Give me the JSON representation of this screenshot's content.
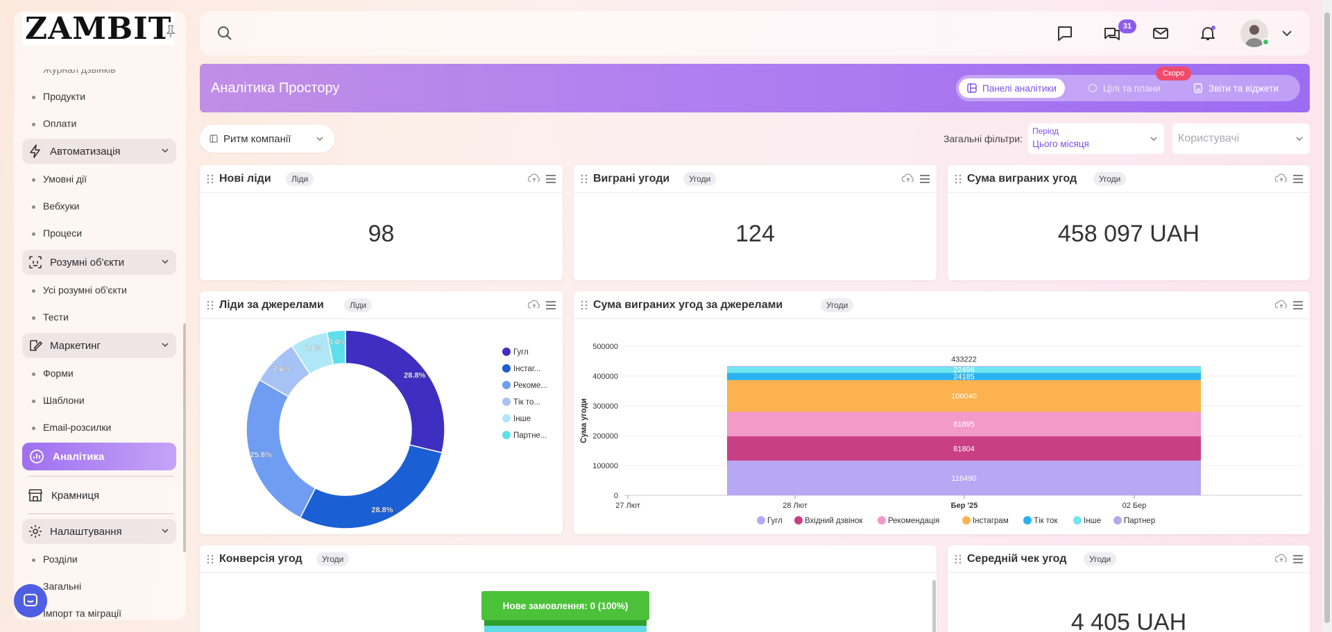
{
  "sidebar": {
    "logo": "ZAMBIT",
    "partial_item": "Журнал дзвінків",
    "items": [
      {
        "label": "Продукти"
      },
      {
        "label": "Оплати"
      }
    ],
    "groups": {
      "automation": {
        "label": "Автоматизація",
        "items": [
          "Умовні дії",
          "Вебхуки",
          "Процеси"
        ]
      },
      "smart_objects": {
        "label": "Розумні об'єкти",
        "items": [
          "Усі розумні об'єкти",
          "Тести"
        ]
      },
      "marketing": {
        "label": "Маркетинг",
        "items": [
          "Форми",
          "Шаблони",
          "Email-розсилки"
        ]
      },
      "settings": {
        "label": "Налаштування",
        "items": [
          "Розділи",
          "Загальні",
          "Імпорт та міграції"
        ]
      }
    },
    "active": "Аналітика",
    "shop": "Крамниця"
  },
  "topbar": {
    "messages_badge": "31"
  },
  "banner": {
    "title": "Аналітика Простору",
    "tabs": [
      "Панелі аналітики",
      "Цілі та плани",
      "Звіти та віджети"
    ],
    "soon": "Скоро"
  },
  "filters": {
    "dashboard": "Ритм компанії",
    "label": "Загальні фільтри:",
    "period_label": "Період",
    "period_value": "Цього місяця",
    "users_placeholder": "Користувачі"
  },
  "cards": {
    "new_leads": {
      "title": "Нові ліди",
      "tag": "Ліди",
      "value": "98"
    },
    "won_deals": {
      "title": "Виграні угоди",
      "tag": "Угоди",
      "value": "124"
    },
    "won_sum": {
      "title": "Сума виграних угод",
      "tag": "Угоди",
      "value": "458 097 UAH"
    },
    "leads_by_source": {
      "title": "Ліди за джерелами",
      "tag": "Ліди"
    },
    "won_by_source": {
      "title": "Сума виграних угод за джерелами",
      "tag": "Угоди"
    },
    "conversion": {
      "title": "Конверсія угод",
      "tag": "Угоди",
      "funnel_label": "Нове замовлення: 0 (100%)"
    },
    "avg_check": {
      "title": "Середній чек угод",
      "tag": "Угоди",
      "value": "4 405 UAH"
    }
  },
  "chart_data": [
    {
      "type": "pie",
      "subtype": "donut",
      "labels": [
        "Гугл",
        "Інстаграм",
        "Рекомендація",
        "Тік ток",
        "Інше",
        "Партнер"
      ],
      "legend_labels": [
        "Гугл",
        "Інстаг...",
        "Рекоме...",
        "Тік то...",
        "Інше",
        "Партне..."
      ],
      "values": [
        28.8,
        28.8,
        25.8,
        7.6,
        6.1,
        3.0
      ],
      "value_labels": [
        "28.8%",
        "28.8%",
        "25.8%",
        "7.6%",
        "6.1%",
        "3.0%"
      ],
      "colors": [
        "#3f2fc0",
        "#1b5fd4",
        "#6f9df2",
        "#a7c2f5",
        "#aee8f8",
        "#5ee0ec"
      ],
      "legend_position": "right"
    },
    {
      "type": "bar",
      "subtype": "stacked",
      "ylabel": "Сума угоди",
      "ylim": [
        0,
        500000
      ],
      "yticks": [
        "0",
        "100000",
        "200000",
        "300000",
        "400000",
        "500000"
      ],
      "xticks": [
        "27 Лют",
        "28 Лют",
        "Бер '25",
        "02 Бер"
      ],
      "x_span": [
        "2025-02-28",
        "2025-03-02"
      ],
      "total_label": "433222",
      "series": [
        {
          "name": "Гугл",
          "value": 116490,
          "color": "#b6a8f5"
        },
        {
          "name": "Вхідний дзвінок",
          "value": 81804,
          "color": "#c83f85"
        },
        {
          "name": "Рекомендація",
          "value": 81895,
          "color": "#f29ac8"
        },
        {
          "name": "Інстаграм",
          "value": 106040,
          "color": "#fbb24f"
        },
        {
          "name": "Тік ток",
          "value": 24185,
          "color": "#2ab2ee"
        },
        {
          "name": "Інше",
          "value": 22496,
          "color": "#6fe6ee"
        },
        {
          "name": "Партнер",
          "value": 312,
          "color": "#b6a8f5"
        }
      ],
      "legend_position": "bottom",
      "grid": true
    }
  ]
}
